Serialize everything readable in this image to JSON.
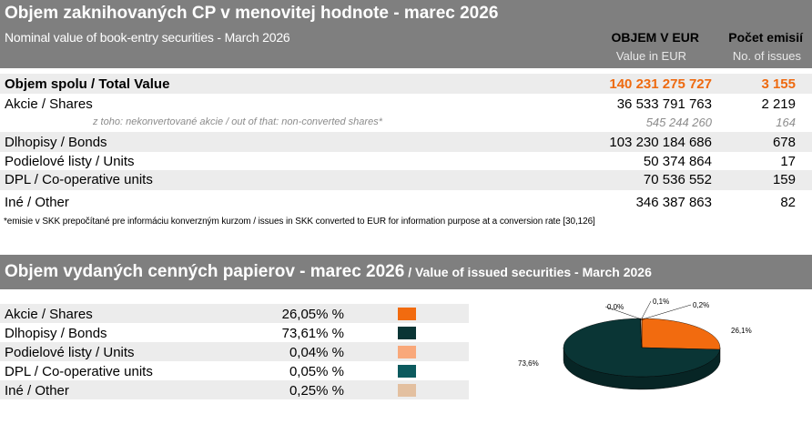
{
  "section1": {
    "title": "Objem zaknihovaných CP v menovitej hodnote - marec 2026",
    "subtitle": "Nominal value of book-entry securities -  March 2026",
    "col_value": "OBJEM V EUR",
    "col_value_sub": "Value in EUR",
    "col_count": "Počet emisií",
    "col_count_sub": "No. of issues",
    "rows": [
      {
        "label": "Objem spolu / Total Value",
        "value": "140 231 275 727",
        "count": "3 155"
      },
      {
        "label": "Akcie / Shares",
        "value": "36 533 791 763",
        "count": "2 219"
      },
      {
        "label": "z toho: nekonvertované akcie / out of that: non-converted shares*",
        "value": "545 244 260",
        "count": "164"
      },
      {
        "label": "Dlhopisy / Bonds",
        "value": "103 230 184 686",
        "count": "678"
      },
      {
        "label": "Podielové listy / Units",
        "value": "50 374 864",
        "count": "17"
      },
      {
        "label": "DPL / Co-operative units",
        "value": "70 536 552",
        "count": "159"
      },
      {
        "label": "Iné / Other",
        "value": "346 387 863",
        "count": "82"
      }
    ],
    "footnote": "*emisie v SKK prepočítané pre informáciu konverzným kurzom / issues in SKK converted to EUR for information purpose at a conversion rate [30,126]"
  },
  "section2": {
    "title": "Objem vydaných cenných papierov - marec 2026",
    "title_en": " / Value of issued securities - March 2026",
    "rows": [
      {
        "label": "Akcie / Shares",
        "pct": "26,05% %",
        "color": "#f26b0f"
      },
      {
        "label": "Dlhopisy / Bonds",
        "pct": "73,61% %",
        "color": "#0a3535"
      },
      {
        "label": "Podielové listy / Units",
        "pct": "0,04% %",
        "color": "#f9a87a"
      },
      {
        "label": "DPL / Co-operative units",
        "pct": "0,05% %",
        "color": "#0c5a5e"
      },
      {
        "label": "Iné / Other",
        "pct": "0,25% %",
        "color": "#e3c0a0"
      }
    ]
  },
  "chart_data": {
    "type": "pie",
    "categories": [
      "Akcie / Shares",
      "Dlhopisy / Bonds",
      "Podielové listy / Units",
      "DPL / Co-operative units",
      "Iné / Other"
    ],
    "values": [
      26.05,
      73.61,
      0.04,
      0.05,
      0.25
    ],
    "data_labels": [
      "26,1%",
      "73,6%",
      "0,0%",
      "0,1%",
      "0,2%"
    ],
    "colors": [
      "#f26b0f",
      "#0a3535",
      "#f9a87a",
      "#0c5a5e",
      "#e3c0a0"
    ]
  }
}
